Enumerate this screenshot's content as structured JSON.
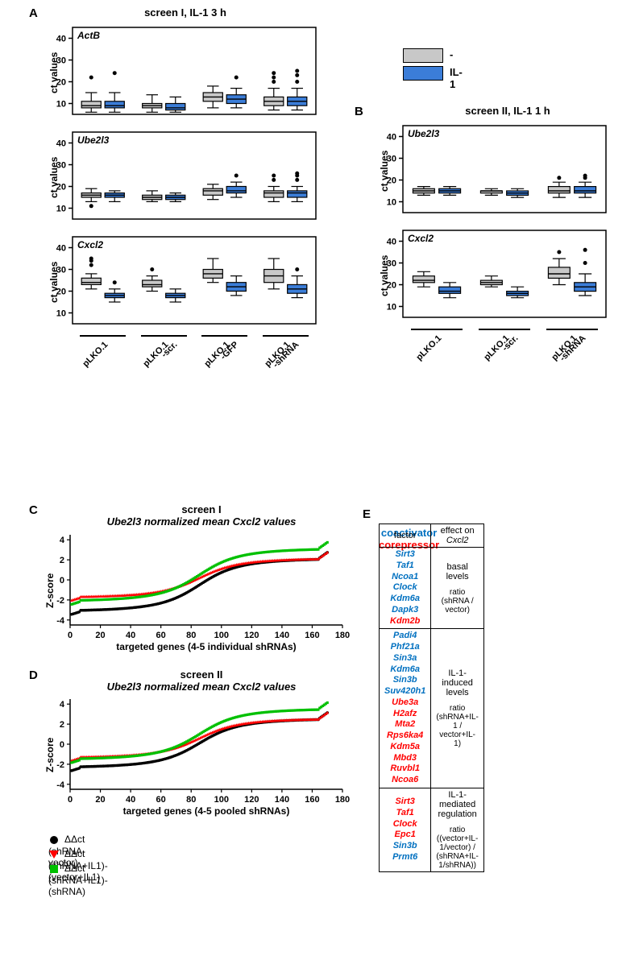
{
  "panels": {
    "A": {
      "label": "A",
      "title": "screen I, IL-1 3 h"
    },
    "B": {
      "label": "B",
      "title": "screen II, IL-1 1 h"
    },
    "C": {
      "label": "C",
      "title1": "screen I",
      "title2": "Ube2l3 normalized mean Cxcl2 values"
    },
    "D": {
      "label": "D",
      "title1": "screen II",
      "title2": "Ube2l3 normalized mean Cxcl2 values"
    },
    "E": {
      "label": "E"
    }
  },
  "legend_top": {
    "items": [
      {
        "label": "-",
        "color": "#c8c8c8"
      },
      {
        "label": "IL-1",
        "color": "#3b7dd8"
      }
    ]
  },
  "colors": {
    "gray_box": "#c8c8c8",
    "blue_box": "#3b7dd8",
    "black": "#000000",
    "red_marker": "#ff0000",
    "green_marker": "#00c000",
    "coact": "#0070c0",
    "corep": "#ff0000",
    "bg": "#ffffff"
  },
  "boxplots_A": {
    "y_label": "ct values",
    "y_ticks": [
      10,
      20,
      30,
      40
    ],
    "y_range": [
      5,
      45
    ],
    "groups": [
      "pLKO.1",
      "pLKO.1\n-scr.",
      "pLKO.1\n-GFP",
      "pLKO.1\n-shRNA"
    ],
    "charts": [
      {
        "gene": "ActB",
        "boxes": [
          {
            "q1": 8,
            "med": 9,
            "q3": 11,
            "wlo": 6,
            "whi": 15,
            "out": [
              22
            ],
            "color": "#c8c8c8"
          },
          {
            "q1": 8,
            "med": 9,
            "q3": 11,
            "wlo": 6,
            "whi": 15,
            "out": [
              24
            ],
            "color": "#3b7dd8"
          },
          {
            "q1": 8,
            "med": 9,
            "q3": 10,
            "wlo": 6,
            "whi": 14,
            "out": [],
            "color": "#c8c8c8"
          },
          {
            "q1": 7,
            "med": 8,
            "q3": 10,
            "wlo": 6,
            "whi": 13,
            "out": [],
            "color": "#3b7dd8"
          },
          {
            "q1": 11,
            "med": 13,
            "q3": 15,
            "wlo": 8,
            "whi": 18,
            "out": [],
            "color": "#c8c8c8"
          },
          {
            "q1": 10,
            "med": 12,
            "q3": 14,
            "wlo": 8,
            "whi": 17,
            "out": [
              22
            ],
            "color": "#3b7dd8"
          },
          {
            "q1": 9,
            "med": 11,
            "q3": 13,
            "wlo": 7,
            "whi": 17,
            "out": [
              20,
              22,
              24
            ],
            "color": "#c8c8c8"
          },
          {
            "q1": 9,
            "med": 11,
            "q3": 13,
            "wlo": 7,
            "whi": 17,
            "out": [
              20,
              23,
              25
            ],
            "color": "#3b7dd8"
          }
        ]
      },
      {
        "gene": "Ube2l3",
        "boxes": [
          {
            "q1": 15,
            "med": 16,
            "q3": 17,
            "wlo": 13,
            "whi": 19,
            "out": [
              11
            ],
            "color": "#c8c8c8"
          },
          {
            "q1": 15,
            "med": 16,
            "q3": 17,
            "wlo": 13,
            "whi": 18,
            "out": [],
            "color": "#3b7dd8"
          },
          {
            "q1": 14,
            "med": 15,
            "q3": 16,
            "wlo": 13,
            "whi": 18,
            "out": [],
            "color": "#c8c8c8"
          },
          {
            "q1": 14,
            "med": 15,
            "q3": 16,
            "wlo": 13,
            "whi": 17,
            "out": [],
            "color": "#3b7dd8"
          },
          {
            "q1": 16,
            "med": 18,
            "q3": 19,
            "wlo": 14,
            "whi": 21,
            "out": [],
            "color": "#c8c8c8"
          },
          {
            "q1": 17,
            "med": 18,
            "q3": 20,
            "wlo": 15,
            "whi": 22,
            "out": [
              25
            ],
            "color": "#3b7dd8"
          },
          {
            "q1": 15,
            "med": 17,
            "q3": 18,
            "wlo": 13,
            "whi": 20,
            "out": [
              23,
              25
            ],
            "color": "#c8c8c8"
          },
          {
            "q1": 15,
            "med": 17,
            "q3": 18,
            "wlo": 13,
            "whi": 20,
            "out": [
              23,
              25,
              26
            ],
            "color": "#3b7dd8"
          }
        ]
      },
      {
        "gene": "Cxcl2",
        "boxes": [
          {
            "q1": 23,
            "med": 24,
            "q3": 26,
            "wlo": 21,
            "whi": 28,
            "out": [
              32,
              34,
              35
            ],
            "color": "#c8c8c8"
          },
          {
            "q1": 17,
            "med": 18,
            "q3": 19,
            "wlo": 15,
            "whi": 21,
            "out": [
              24
            ],
            "color": "#3b7dd8"
          },
          {
            "q1": 22,
            "med": 23,
            "q3": 25,
            "wlo": 20,
            "whi": 27,
            "out": [
              30
            ],
            "color": "#c8c8c8"
          },
          {
            "q1": 17,
            "med": 18,
            "q3": 19,
            "wlo": 15,
            "whi": 21,
            "out": [],
            "color": "#3b7dd8"
          },
          {
            "q1": 26,
            "med": 28,
            "q3": 30,
            "wlo": 24,
            "whi": 35,
            "out": [],
            "color": "#c8c8c8"
          },
          {
            "q1": 20,
            "med": 22,
            "q3": 24,
            "wlo": 18,
            "whi": 27,
            "out": [],
            "color": "#3b7dd8"
          },
          {
            "q1": 24,
            "med": 27,
            "q3": 30,
            "wlo": 21,
            "whi": 35,
            "out": [],
            "color": "#c8c8c8"
          },
          {
            "q1": 19,
            "med": 21,
            "q3": 23,
            "wlo": 17,
            "whi": 27,
            "out": [
              30
            ],
            "color": "#3b7dd8"
          }
        ]
      }
    ]
  },
  "boxplots_B": {
    "y_label": "ct values",
    "y_ticks": [
      10,
      20,
      30,
      40
    ],
    "y_range": [
      5,
      45
    ],
    "groups": [
      "pLKO.1",
      "pLKO.1\n-scr.",
      "pLKO.1\n-shRNA"
    ],
    "charts": [
      {
        "gene": "Ube2l3",
        "boxes": [
          {
            "q1": 14,
            "med": 15,
            "q3": 16,
            "wlo": 13,
            "whi": 17,
            "out": [],
            "color": "#c8c8c8"
          },
          {
            "q1": 14,
            "med": 15,
            "q3": 16,
            "wlo": 13,
            "whi": 17,
            "out": [],
            "color": "#3b7dd8"
          },
          {
            "q1": 14,
            "med": 15,
            "q3": 15,
            "wlo": 13,
            "whi": 16,
            "out": [],
            "color": "#c8c8c8"
          },
          {
            "q1": 13,
            "med": 14,
            "q3": 15,
            "wlo": 12,
            "whi": 16,
            "out": [],
            "color": "#3b7dd8"
          },
          {
            "q1": 14,
            "med": 15,
            "q3": 17,
            "wlo": 12,
            "whi": 19,
            "out": [
              21
            ],
            "color": "#c8c8c8"
          },
          {
            "q1": 14,
            "med": 15,
            "q3": 17,
            "wlo": 12,
            "whi": 19,
            "out": [
              21,
              22
            ],
            "color": "#3b7dd8"
          }
        ]
      },
      {
        "gene": "Cxcl2",
        "boxes": [
          {
            "q1": 21,
            "med": 22,
            "q3": 24,
            "wlo": 19,
            "whi": 26,
            "out": [],
            "color": "#c8c8c8"
          },
          {
            "q1": 16,
            "med": 17,
            "q3": 19,
            "wlo": 14,
            "whi": 21,
            "out": [],
            "color": "#3b7dd8"
          },
          {
            "q1": 20,
            "med": 21,
            "q3": 22,
            "wlo": 19,
            "whi": 24,
            "out": [],
            "color": "#c8c8c8"
          },
          {
            "q1": 15,
            "med": 16,
            "q3": 17,
            "wlo": 14,
            "whi": 19,
            "out": [],
            "color": "#3b7dd8"
          },
          {
            "q1": 23,
            "med": 25,
            "q3": 28,
            "wlo": 20,
            "whi": 32,
            "out": [
              35
            ],
            "color": "#c8c8c8"
          },
          {
            "q1": 17,
            "med": 19,
            "q3": 21,
            "wlo": 15,
            "whi": 25,
            "out": [
              30,
              36
            ],
            "color": "#3b7dd8"
          }
        ]
      }
    ]
  },
  "scatter": {
    "y_label": "Z-score",
    "x_label_C": "targeted genes (4-5 individual shRNAs)",
    "x_label_D": "targeted genes (4-5 pooled shRNAs)",
    "y_ticks": [
      -4,
      -2,
      0,
      2,
      4
    ],
    "y_range": [
      -4.5,
      4.5
    ],
    "x_ticks": [
      0,
      20,
      40,
      60,
      80,
      100,
      120,
      140,
      160,
      180
    ],
    "x_range": [
      0,
      180
    ],
    "n_points": 170,
    "series": [
      {
        "label": "ΔΔct (shRNA-vector)",
        "color": "#000000",
        "marker": "circle"
      },
      {
        "label": "ΔΔct (shRNA+IL1)-(vector+IL1)",
        "color": "#ff0000",
        "marker": "triangle"
      },
      {
        "label": "ΔΔct (shRNA+IL1)-(shRNA)",
        "color": "#00c000",
        "marker": "square"
      }
    ],
    "C": {
      "black_start": -3.2,
      "black_end": 2.2,
      "red_start": -1.8,
      "red_end": 2.2,
      "green_start": -2.2,
      "green_end": 3.2
    },
    "D": {
      "black_start": -2.4,
      "black_end": 2.6,
      "red_start": -1.4,
      "red_end": 2.6,
      "green_start": -1.6,
      "green_end": 3.6
    }
  },
  "table_E": {
    "header": [
      "factor",
      "effect on Cxcl2"
    ],
    "sections": [
      {
        "genes": [
          {
            "name": "Sirt3",
            "cls": "blue"
          },
          {
            "name": "Taf1",
            "cls": "blue"
          },
          {
            "name": "Ncoa1",
            "cls": "blue"
          },
          {
            "name": "Clock",
            "cls": "blue"
          },
          {
            "name": "Kdm6a",
            "cls": "blue"
          },
          {
            "name": "Dapk3",
            "cls": "blue"
          },
          {
            "name": "Kdm2b",
            "cls": "red"
          }
        ],
        "effect_main": "basal levels",
        "effect_sub": "ratio (shRNA / vector)"
      },
      {
        "genes": [
          {
            "name": "Padi4",
            "cls": "blue"
          },
          {
            "name": "Phf21a",
            "cls": "blue"
          },
          {
            "name": "Sin3a",
            "cls": "blue"
          },
          {
            "name": "Kdm6a",
            "cls": "blue"
          },
          {
            "name": "Sin3b",
            "cls": "blue"
          },
          {
            "name": "Suv420h1",
            "cls": "blue"
          },
          {
            "name": "Ube3a",
            "cls": "red"
          },
          {
            "name": "H2afz",
            "cls": "red"
          },
          {
            "name": "Mta2",
            "cls": "red"
          },
          {
            "name": "Rps6ka4",
            "cls": "red"
          },
          {
            "name": "Kdm5a",
            "cls": "red"
          },
          {
            "name": "Mbd3",
            "cls": "red"
          },
          {
            "name": "Ruvbl1",
            "cls": "red"
          },
          {
            "name": "Ncoa6",
            "cls": "red"
          }
        ],
        "effect_main": "IL-1-induced levels",
        "effect_sub": "ratio (shRNA+IL-1 / vector+IL-1)"
      },
      {
        "genes": [
          {
            "name": "Sirt3",
            "cls": "red"
          },
          {
            "name": "Taf1",
            "cls": "red"
          },
          {
            "name": "Clock",
            "cls": "red"
          },
          {
            "name": "Epc1",
            "cls": "red"
          },
          {
            "name": "Sin3b",
            "cls": "blue"
          },
          {
            "name": "Prmt6",
            "cls": "blue"
          }
        ],
        "effect_main": "IL-1-mediated regulation",
        "effect_sub": "ratio ((vector+IL-1/vector) /\n(shRNA+IL-1/shRNA))"
      }
    ],
    "legend": {
      "coact": "coactivator",
      "corep": "corepressor"
    }
  }
}
